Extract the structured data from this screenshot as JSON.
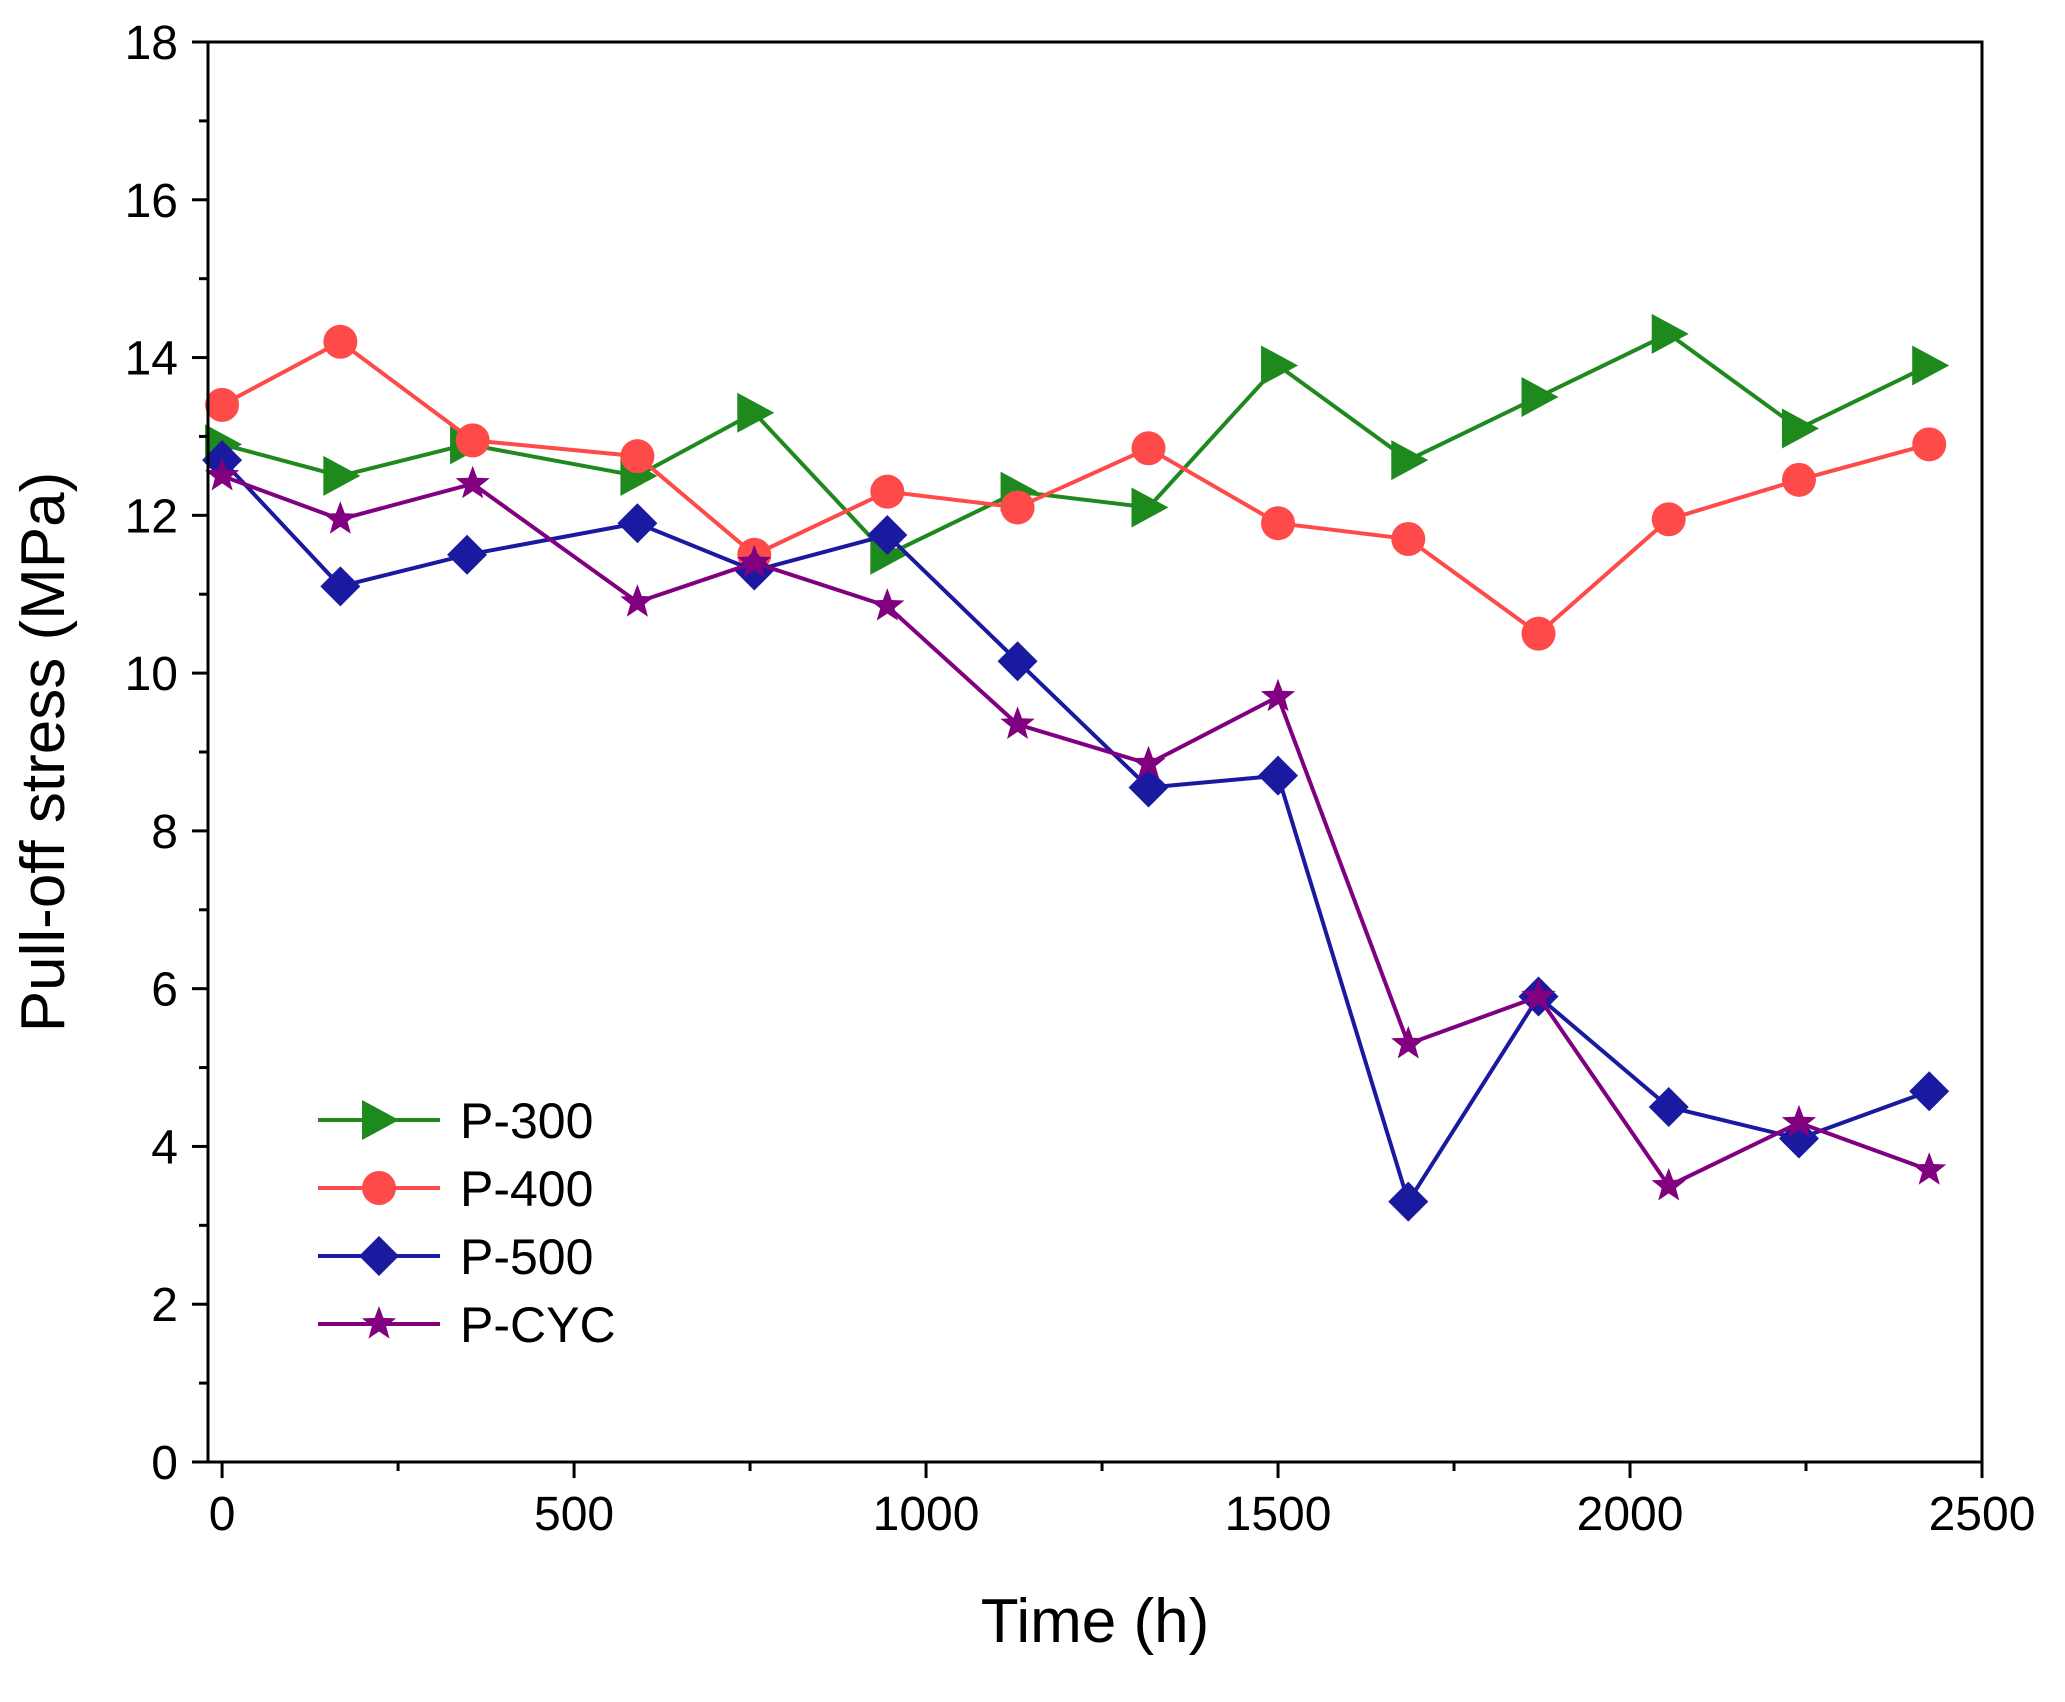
{
  "chart_data": {
    "type": "line",
    "xlabel": "Time (h)",
    "ylabel": "Pull-off stress (MPa)",
    "xlim": [
      -20,
      2500
    ],
    "ylim": [
      0,
      18
    ],
    "xticks": [
      0,
      500,
      1000,
      1500,
      2000,
      2500
    ],
    "yticks": [
      0,
      2,
      4,
      6,
      8,
      10,
      12,
      14,
      16,
      18
    ],
    "legend_position": "bottom-left",
    "series": [
      {
        "name": "P-300",
        "color": "#1e8a1e",
        "marker": "triangle-right",
        "x": [
          0,
          168,
          348,
          590,
          756,
          945,
          1130,
          1316,
          1500,
          1685,
          1870,
          2055,
          2240,
          2425
        ],
        "y": [
          12.9,
          12.5,
          12.9,
          12.5,
          13.3,
          11.5,
          12.3,
          12.1,
          13.9,
          12.7,
          13.5,
          14.3,
          13.1,
          13.9
        ]
      },
      {
        "name": "P-400",
        "color": "#ff4a4a",
        "marker": "circle",
        "x": [
          0,
          168,
          356,
          590,
          756,
          945,
          1130,
          1316,
          1500,
          1685,
          1870,
          2055,
          2240,
          2425
        ],
        "y": [
          13.4,
          14.2,
          12.95,
          12.75,
          11.5,
          12.3,
          12.1,
          12.85,
          11.9,
          11.7,
          10.5,
          11.95,
          12.45,
          12.9
        ]
      },
      {
        "name": "P-500",
        "color": "#1a1aa0",
        "marker": "diamond",
        "x": [
          0,
          168,
          348,
          590,
          756,
          945,
          1130,
          1316,
          1500,
          1685,
          1870,
          2055,
          2240,
          2425
        ],
        "y": [
          12.7,
          11.1,
          11.5,
          11.9,
          11.3,
          11.75,
          10.15,
          8.55,
          8.7,
          3.3,
          5.9,
          4.5,
          4.1,
          4.7
        ]
      },
      {
        "name": "P-CYC",
        "color": "#800080",
        "marker": "star",
        "x": [
          0,
          168,
          356,
          590,
          756,
          945,
          1130,
          1316,
          1500,
          1685,
          1870,
          2055,
          2240,
          2425
        ],
        "y": [
          12.5,
          11.95,
          12.4,
          10.9,
          11.4,
          10.85,
          9.35,
          8.85,
          9.7,
          5.3,
          5.9,
          3.5,
          4.3,
          3.7
        ]
      }
    ]
  }
}
